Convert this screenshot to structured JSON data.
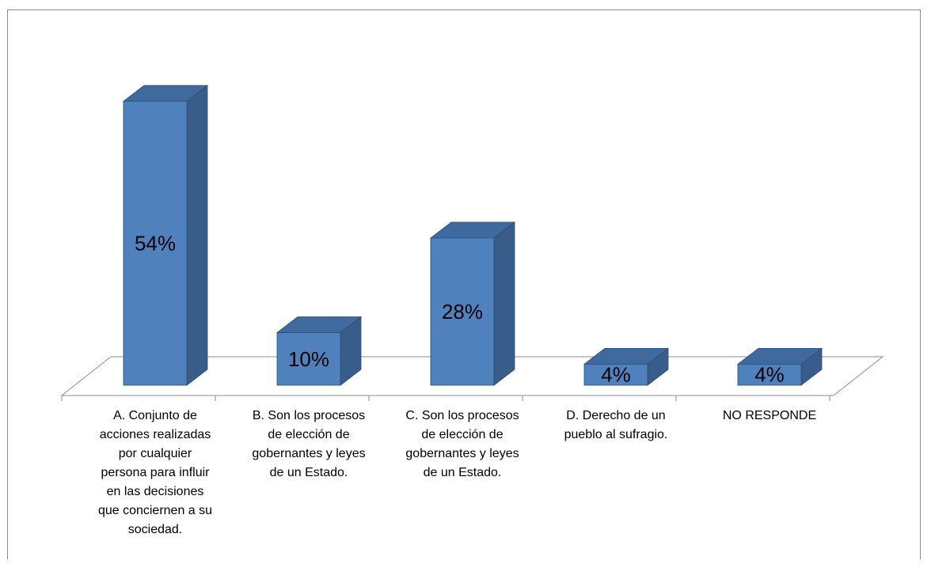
{
  "chart_data": {
    "type": "bar",
    "style": "3d-column",
    "categories": [
      "A.  Conjunto de acciones realizadas por cualquier persona para influir en las decisiones que conciernen a su sociedad.",
      "B. Son los procesos de elección de gobernantes y leyes de un Estado.",
      "C. Son los procesos de elección de gobernantes y leyes de un Estado.",
      "D. Derecho de un pueblo al sufragio.",
      "NO RESPONDE"
    ],
    "category_lines": [
      [
        "A.  Conjunto de",
        "acciones realizadas",
        "por cualquier",
        "persona para influir",
        "en las decisiones",
        "que conciernen a su",
        "sociedad."
      ],
      [
        "B. Son los procesos",
        "de elección de",
        "gobernantes y leyes",
        "de un Estado."
      ],
      [
        "C. Son los procesos",
        "de elección de",
        "gobernantes y leyes",
        "de un Estado."
      ],
      [
        "D. Derecho de un",
        "pueblo al sufragio."
      ],
      [
        "NO RESPONDE"
      ]
    ],
    "values": [
      54,
      10,
      28,
      4,
      4
    ],
    "data_labels": [
      "54%",
      "10%",
      "28%",
      "4%",
      "4%"
    ],
    "units": "%",
    "grid": false,
    "legend": "none",
    "colors": {
      "front": "#4f81bd",
      "side": "#385d8a",
      "top": "#3f6a9e",
      "edge": "#2c4d75"
    }
  }
}
